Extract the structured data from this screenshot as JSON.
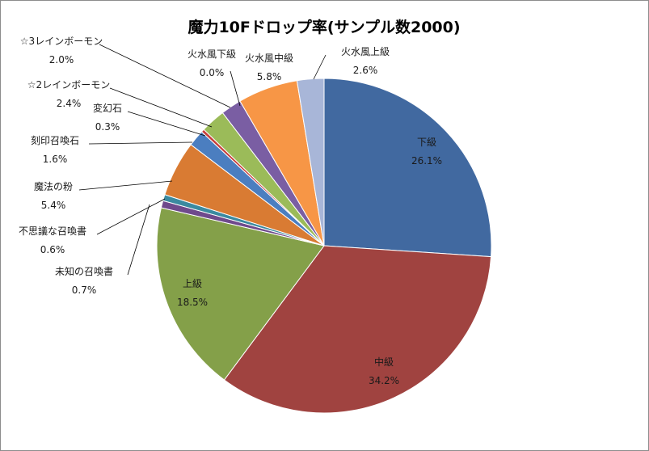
{
  "chart_data": {
    "type": "pie",
    "title": "魔力10Fドロップ率(サンプル数2000)",
    "slices": [
      {
        "label": "下級",
        "value_text": "26.1%",
        "value": 26.1,
        "color": "#4169a0"
      },
      {
        "label": "中級",
        "value_text": "34.2%",
        "value": 34.2,
        "color": "#a04340"
      },
      {
        "label": "上級",
        "value_text": "18.5%",
        "value": 18.5,
        "color": "#84a049"
      },
      {
        "label": "未知の召喚書",
        "value_text": "0.7%",
        "value": 0.7,
        "color": "#6f4a8c"
      },
      {
        "label": "不思議な召喚書",
        "value_text": "0.6%",
        "value": 0.6,
        "color": "#3b8aa0"
      },
      {
        "label": "魔法の粉",
        "value_text": "5.4%",
        "value": 5.4,
        "color": "#d97b33"
      },
      {
        "label": "刻印召喚石",
        "value_text": "1.6%",
        "value": 1.6,
        "color": "#4b7ec0"
      },
      {
        "label": "変幻石",
        "value_text": "0.3%",
        "value": 0.3,
        "color": "#c8403c"
      },
      {
        "label": "☆2レインボーモン",
        "value_text": "2.4%",
        "value": 2.4,
        "color": "#9bbb59"
      },
      {
        "label": "☆3レインボーモン",
        "value_text": "2.0%",
        "value": 2.0,
        "color": "#7a5ea3"
      },
      {
        "label": "火水風下級",
        "value_text": "0.0%",
        "value": 0.0,
        "color": "#2f95b0"
      },
      {
        "label": "火水風中級",
        "value_text": "5.8%",
        "value": 5.8,
        "color": "#f79646"
      },
      {
        "label": "火水風上級",
        "value_text": "2.6%",
        "value": 2.6,
        "color": "#a8b6d8"
      }
    ],
    "legend": "none"
  }
}
